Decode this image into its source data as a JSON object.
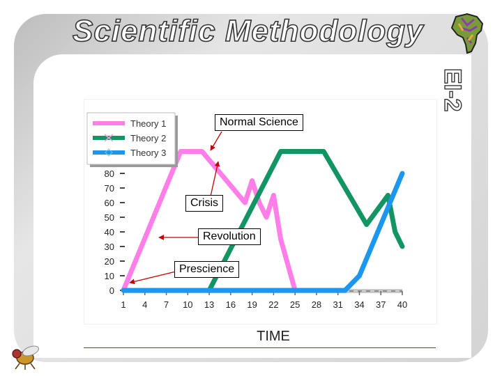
{
  "slide": {
    "title": "Scientific Methodology",
    "code": "EI-2"
  },
  "callouts": {
    "normal_science": "Normal Science",
    "crisis": "Crisis",
    "revolution": "Revolution",
    "prescience": "Prescience"
  },
  "colors": {
    "theory1": "#ff7ee8",
    "theory2": "#139463",
    "theory3": "#1c97ee",
    "arrow": "#c40000"
  },
  "chart_data": {
    "type": "line",
    "xlabel": "TIME",
    "ylabel": "",
    "x_ticks": [
      1,
      4,
      7,
      10,
      13,
      16,
      19,
      22,
      25,
      28,
      31,
      34,
      37,
      40
    ],
    "y_ticks": [
      0,
      10,
      20,
      30,
      40,
      50,
      60,
      70,
      80
    ],
    "xlim": [
      1,
      40
    ],
    "ylim": [
      0,
      80
    ],
    "legend_position": "top-left",
    "series": [
      {
        "name": "Theory 1",
        "color": "#ff7ee8",
        "points": [
          [
            1,
            0
          ],
          [
            9,
            95
          ],
          [
            12,
            95
          ],
          [
            18,
            60
          ],
          [
            19,
            75
          ],
          [
            20,
            60
          ],
          [
            21,
            50
          ],
          [
            22,
            65
          ],
          [
            23,
            35
          ],
          [
            25,
            0
          ]
        ]
      },
      {
        "name": "Theory 2",
        "color": "#139463",
        "points": [
          [
            13,
            0
          ],
          [
            23,
            95
          ],
          [
            29,
            95
          ],
          [
            35,
            45
          ],
          [
            38,
            65
          ],
          [
            39,
            40
          ],
          [
            40,
            30
          ]
        ]
      },
      {
        "name": "Theory 3",
        "color": "#1c97ee",
        "points": [
          [
            1,
            0
          ],
          [
            32,
            0
          ],
          [
            34,
            10
          ],
          [
            40,
            80
          ]
        ]
      }
    ]
  }
}
